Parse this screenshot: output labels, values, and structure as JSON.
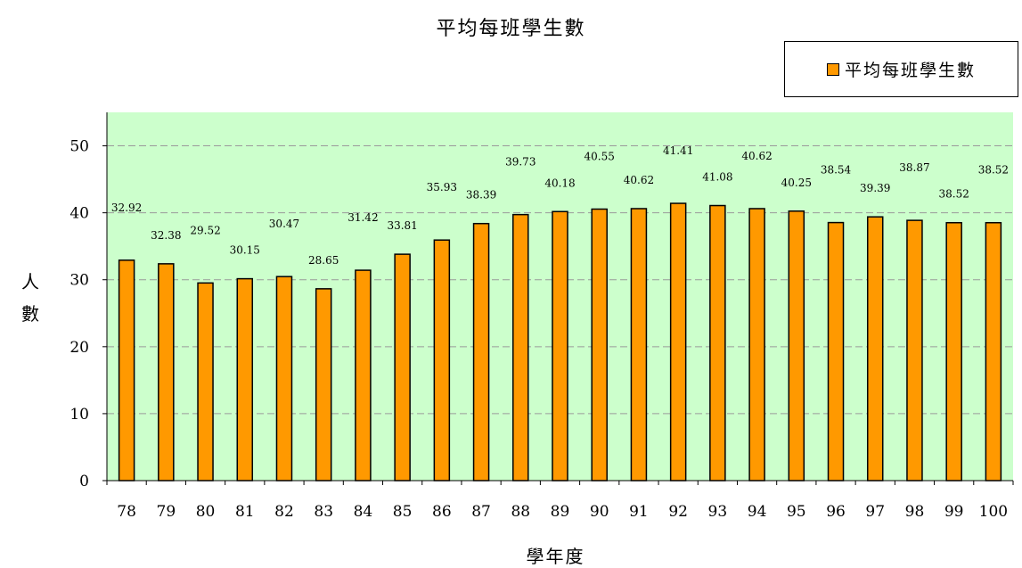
{
  "chart_data": {
    "type": "bar",
    "title": "平均每班學生數",
    "xlabel": "學年度",
    "ylabel": "人數",
    "categories": [
      "78",
      "79",
      "80",
      "81",
      "82",
      "83",
      "84",
      "85",
      "86",
      "87",
      "88",
      "89",
      "90",
      "91",
      "92",
      "93",
      "94",
      "95",
      "96",
      "97",
      "98",
      "99",
      "100"
    ],
    "series": [
      {
        "name": "平均每班學生數",
        "values": [
          32.92,
          32.38,
          29.52,
          30.15,
          30.47,
          28.65,
          31.42,
          33.81,
          35.93,
          38.39,
          39.73,
          40.18,
          40.55,
          40.62,
          41.41,
          41.08,
          40.62,
          40.25,
          38.54,
          39.39,
          38.87,
          38.52,
          38.52
        ],
        "color": "#FF9900"
      }
    ],
    "ylim": [
      0,
      55
    ],
    "yticks": [
      0,
      10,
      20,
      30,
      40,
      50
    ],
    "grid": true,
    "legend_position": "top-right",
    "plot_background": "#CCFFCC"
  }
}
